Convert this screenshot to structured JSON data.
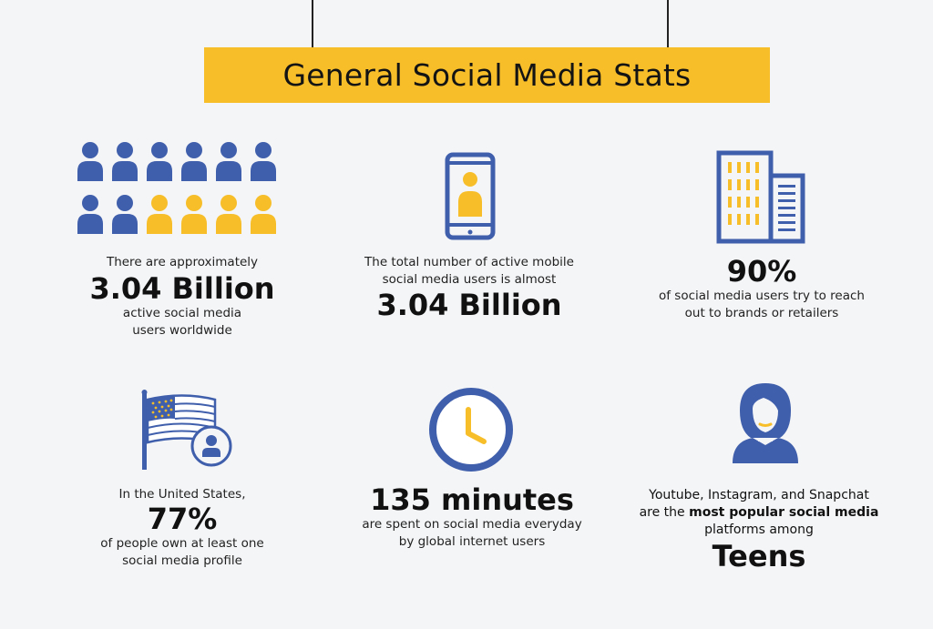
{
  "title": "General Social Media Stats",
  "colors": {
    "banner": "#f7be29",
    "blue": "#3f5eab",
    "yellow": "#f7be29",
    "background": "#f4f5f7"
  },
  "icons": [
    "people-grid-icon",
    "smartphone-user-icon",
    "office-buildings-icon",
    "flag-user-icon",
    "clock-icon",
    "woman-avatar-icon"
  ],
  "stats": {
    "users": {
      "pre": "There are approximately",
      "value": "3.04 Billion",
      "post_line1": "active social media",
      "post_line2": "users worldwide"
    },
    "mobile": {
      "pre_line1": "The total number of active mobile",
      "pre_line2": "social media users is almost",
      "value": "3.04 Billion"
    },
    "brands": {
      "value": "90%",
      "post_line1": "of social media users try to reach",
      "post_line2": "out to brands or retailers"
    },
    "us": {
      "pre": "In the United States,",
      "value": "77%",
      "post_line1": "of people own at least one",
      "post_line2": "social media profile"
    },
    "time": {
      "value": "135 minutes",
      "post_line1": "are spent on social media everyday",
      "post_line2": "by global internet users"
    },
    "teens": {
      "line1": "Youtube, Instagram, and Snapchat",
      "line2_a": "are the ",
      "line2_b": "most popular social media",
      "line3": "platforms among",
      "value": "Teens"
    }
  }
}
